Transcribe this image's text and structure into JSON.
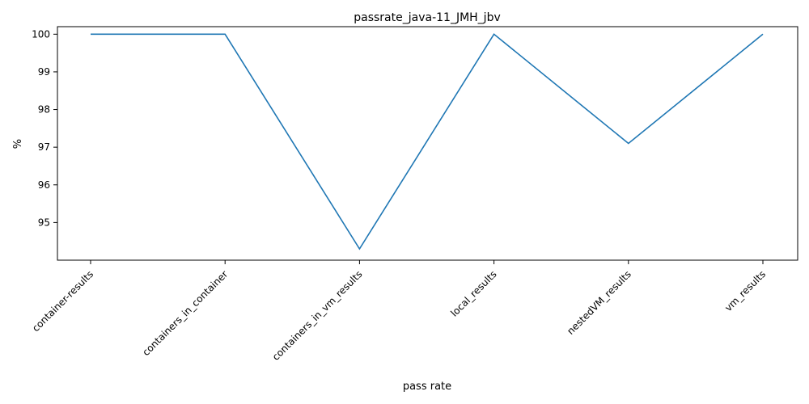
{
  "chart_data": {
    "type": "line",
    "title": "passrate_java-11_JMH_jbv",
    "xlabel": "pass rate",
    "ylabel": "%",
    "categories": [
      "container-results",
      "containers_in_container",
      "containers_in_vm_results",
      "local_results",
      "nestedVM_results",
      "vm_results"
    ],
    "series": [
      {
        "values": [
          100,
          100,
          94.3,
          100,
          97.1,
          100
        ],
        "color": "#1f77b4"
      }
    ],
    "ylim": [
      94.0,
      100.2
    ],
    "yticks": [
      95,
      96,
      97,
      98,
      99,
      100
    ],
    "grid": false,
    "legend": "none"
  }
}
